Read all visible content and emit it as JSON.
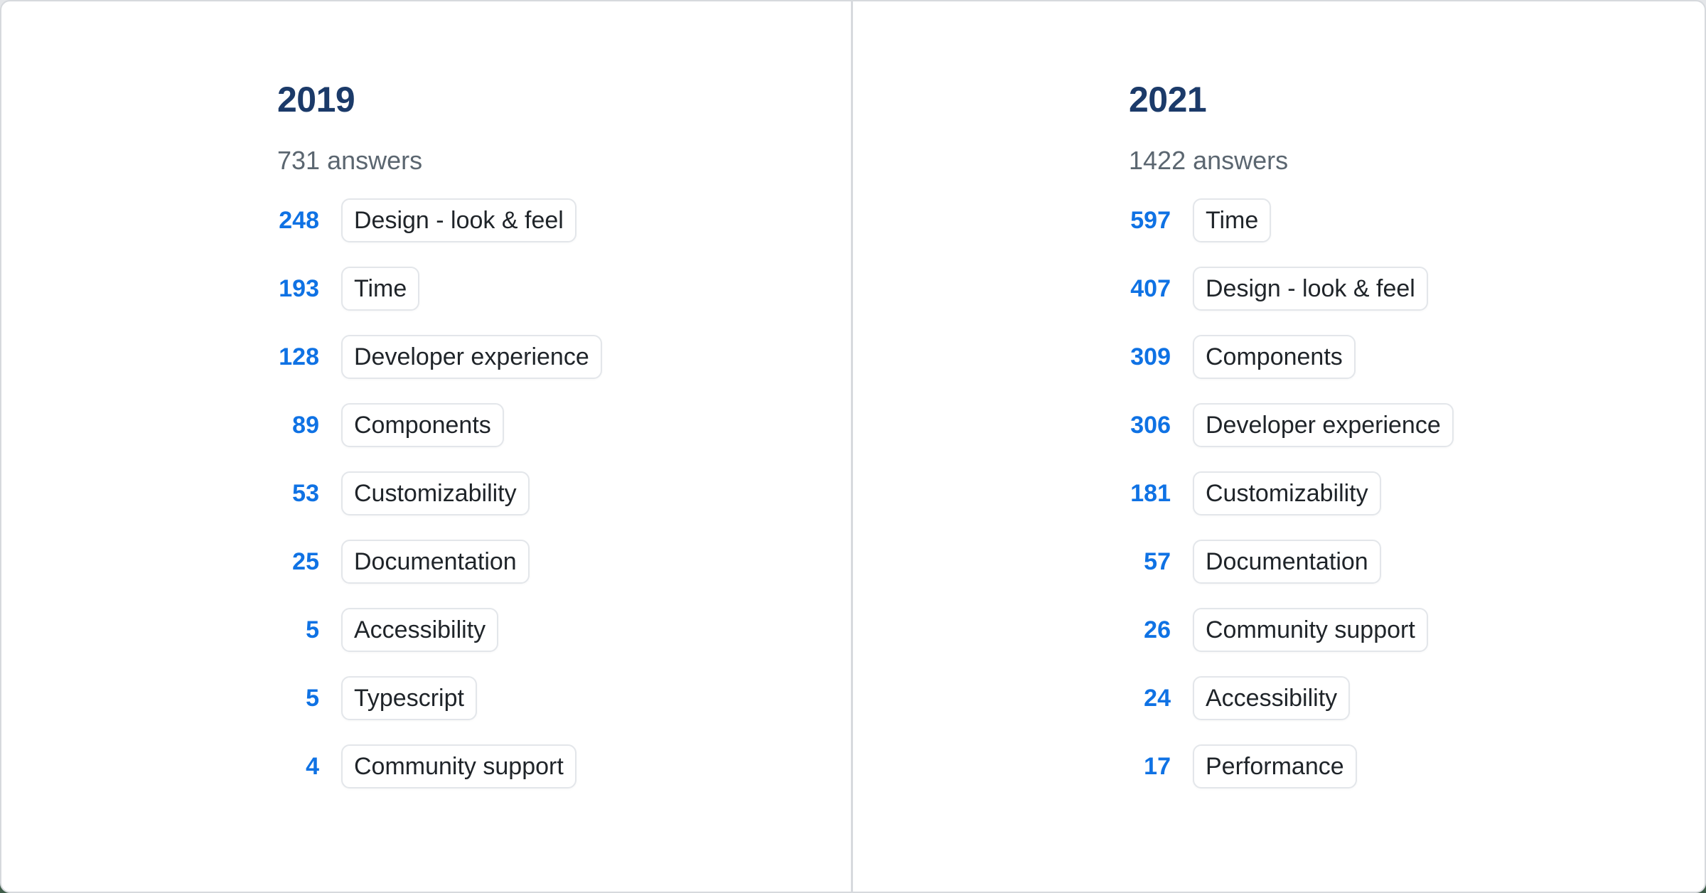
{
  "page": {
    "background_top_color": "#e4e6e9",
    "background_bottom_color": "#3e5c48",
    "card_background": "#ffffff",
    "card_border_color": "#d6d9dd",
    "divider_color": "#d7dade"
  },
  "colors": {
    "year_heading": "#1b3a69",
    "answers_text": "#5b6670",
    "count_text": "#0f72e4",
    "chip_text": "#1f2429",
    "chip_border": "#e3e6ea"
  },
  "columns": [
    {
      "year": "2019",
      "answers_label": "731 answers",
      "rows": [
        {
          "count": "248",
          "label": "Design - look & feel"
        },
        {
          "count": "193",
          "label": "Time"
        },
        {
          "count": "128",
          "label": "Developer experience"
        },
        {
          "count": "89",
          "label": "Components"
        },
        {
          "count": "53",
          "label": "Customizability"
        },
        {
          "count": "25",
          "label": "Documentation"
        },
        {
          "count": "5",
          "label": "Accessibility"
        },
        {
          "count": "5",
          "label": "Typescript"
        },
        {
          "count": "4",
          "label": "Community support"
        }
      ]
    },
    {
      "year": "2021",
      "answers_label": "1422 answers",
      "rows": [
        {
          "count": "597",
          "label": "Time"
        },
        {
          "count": "407",
          "label": "Design - look & feel"
        },
        {
          "count": "309",
          "label": "Components"
        },
        {
          "count": "306",
          "label": "Developer experience"
        },
        {
          "count": "181",
          "label": "Customizability"
        },
        {
          "count": "57",
          "label": "Documentation"
        },
        {
          "count": "26",
          "label": "Community support"
        },
        {
          "count": "24",
          "label": "Accessibility"
        },
        {
          "count": "17",
          "label": "Performance"
        }
      ]
    }
  ],
  "chart_data": [
    {
      "type": "bar",
      "title": "2019",
      "subtitle": "731 answers",
      "categories": [
        "Design - look & feel",
        "Time",
        "Developer experience",
        "Components",
        "Customizability",
        "Documentation",
        "Accessibility",
        "Typescript",
        "Community support"
      ],
      "values": [
        248,
        193,
        128,
        89,
        53,
        25,
        5,
        5,
        4
      ],
      "xlabel": "",
      "ylabel": "answers"
    },
    {
      "type": "bar",
      "title": "2021",
      "subtitle": "1422 answers",
      "categories": [
        "Time",
        "Design - look & feel",
        "Components",
        "Developer experience",
        "Customizability",
        "Documentation",
        "Community support",
        "Accessibility",
        "Performance"
      ],
      "values": [
        597,
        407,
        309,
        306,
        181,
        57,
        26,
        24,
        17
      ],
      "xlabel": "",
      "ylabel": "answers"
    }
  ]
}
